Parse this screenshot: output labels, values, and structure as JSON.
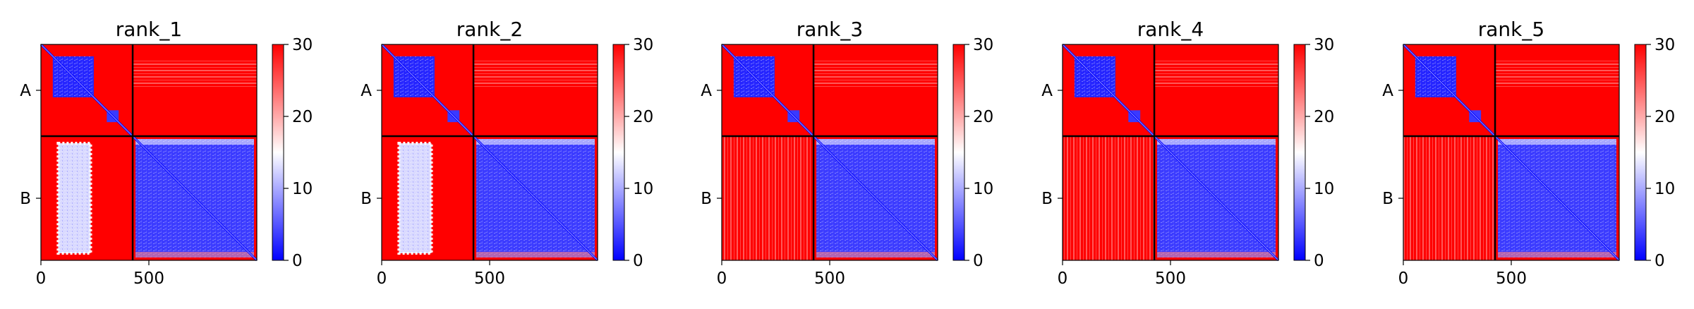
{
  "chart_data": {
    "type": "heatmap",
    "colormap": {
      "name": "bwr",
      "low": "#0000ff",
      "mid": "#ffffff",
      "high": "#ff0000"
    },
    "clim": [
      0,
      30
    ],
    "colorbar_ticks": [
      "0",
      "10",
      "20",
      "30"
    ],
    "x_ticks": [
      0,
      500
    ],
    "x_tick_labels": [
      "0",
      "500"
    ],
    "xlim": [
      0,
      1000
    ],
    "chains": [
      {
        "label": "A",
        "start": 0,
        "end": 425
      },
      {
        "label": "B",
        "start": 425,
        "end": 1000
      }
    ],
    "panels": [
      {
        "title": "rank_1",
        "B_to_A_band": "intermediate"
      },
      {
        "title": "rank_2",
        "B_to_A_band": "intermediate"
      },
      {
        "title": "rank_3",
        "B_to_A_band": "high"
      },
      {
        "title": "rank_4",
        "B_to_A_band": "high"
      },
      {
        "title": "rank_5",
        "B_to_A_band": "high"
      }
    ]
  }
}
